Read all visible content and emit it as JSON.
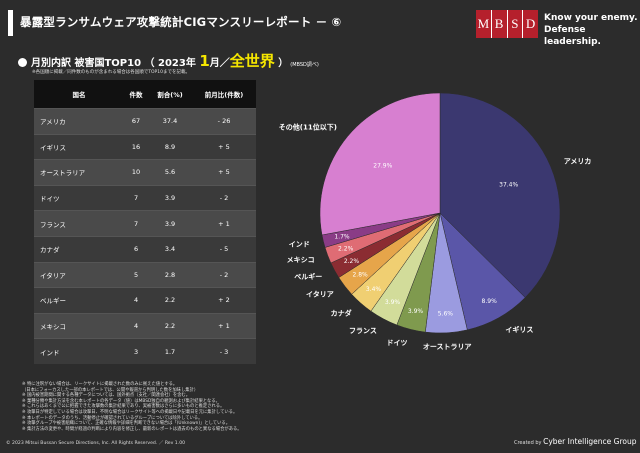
{
  "header": {
    "title": "暴露型ランサムウェア攻撃統計CIGマンスリーレポート － ⑥",
    "logo_letters": [
      "M",
      "B",
      "S",
      "D"
    ],
    "tagline_line1": "Know your enemy.",
    "tagline_line2": "Defense leadership."
  },
  "subtitle": {
    "prefix": "月別内訳 被害国TOP10 （ 2023年",
    "month": "1",
    "middle": "月／",
    "region": "全世界",
    "suffix": "）",
    "source": "(MBSD調べ)"
  },
  "note": "※各国順に掲載／同件数のものが含まれる場合は各国順でTOP10までを記載。",
  "table": {
    "headers": [
      "国名",
      "件数",
      "割合(%)",
      "前月比(件数)"
    ],
    "rows": [
      [
        "アメリカ",
        "67",
        "37.4",
        "- 26"
      ],
      [
        "イギリス",
        "16",
        "8.9",
        "+ 5"
      ],
      [
        "オーストラリア",
        "10",
        "5.6",
        "+ 5"
      ],
      [
        "ドイツ",
        "7",
        "3.9",
        "- 2"
      ],
      [
        "フランス",
        "7",
        "3.9",
        "+ 1"
      ],
      [
        "カナダ",
        "6",
        "3.4",
        "- 5"
      ],
      [
        "イタリア",
        "5",
        "2.8",
        "- 2"
      ],
      [
        "ベルギー",
        "4",
        "2.2",
        "+ 2"
      ],
      [
        "メキシコ",
        "4",
        "2.2",
        "+ 1"
      ],
      [
        "インド",
        "3",
        "1.7",
        "- 3"
      ]
    ]
  },
  "chart_data": {
    "type": "pie",
    "series": [
      {
        "name": "アメリカ",
        "value": 37.4,
        "label": "37.4%",
        "color": "#3b3870"
      },
      {
        "name": "イギリス",
        "value": 8.9,
        "label": "8.9%",
        "color": "#5a56a8"
      },
      {
        "name": "オーストラリア",
        "value": 5.6,
        "label": "5.6%",
        "color": "#9b9be0"
      },
      {
        "name": "ドイツ",
        "value": 3.9,
        "label": "3.9%",
        "color": "#7f9a4e"
      },
      {
        "name": "フランス",
        "value": 3.9,
        "label": "3.9%",
        "color": "#d2dc9a"
      },
      {
        "name": "カナダ",
        "value": 3.4,
        "label": "3.4%",
        "color": "#f0cf72"
      },
      {
        "name": "イタリア",
        "value": 2.8,
        "label": "2.8%",
        "color": "#e6a54a"
      },
      {
        "name": "ベルギー",
        "value": 2.2,
        "label": "2.2%",
        "color": "#8b2c32"
      },
      {
        "name": "メキシコ",
        "value": 2.2,
        "label": "2.2%",
        "color": "#df6c74"
      },
      {
        "name": "インド",
        "value": 1.7,
        "label": "1.7%",
        "color": "#8a3c86"
      },
      {
        "name": "その他(11位以下)",
        "value": 27.9,
        "label": "27.9%",
        "color": "#d77fd0"
      }
    ]
  },
  "footnotes": [
    "※ 特に注釈がない場合は、リークサイトに掲載された数のみに拠えた値とする。",
    "（日本にフォーカスした一部の本レポートでは、公開や報道から判明した数を加味し集計）",
    "※ 国内被害期間に関する各種データについては、国外拠点（支社／関連会社）を含む。",
    "※ 業種分類や集計方法を含む本レポートの各データ（値）はMBSD独自の観測および集計結果となる。",
    "※ これらはあくまで公に把握できた攻撃数の集計結果であり、実被害数はさらに多いものと推定される。",
    "※ 攻撃日が特定している場合は攻撃日、不明な場合はリークサイト等への掲載日や記載日を元に集計している。",
    "※ 本レポートのデータのうち、活動停止が確認されているグループについては除外している。",
    "※ 攻撃グループや被害組織について、正確な情報や詳細を判断できない場合は「(Unknown)」としている。",
    "※ 集計方法の変更や、時間が経過の判断により内容を修正し、最新のレポートは過去のものと異なる場合がある。"
  ],
  "copyright": "© 2023 Mitsui Bussan Secure Directions, Inc.  All Rights Reserved. ／ Rev 1.00",
  "credit": {
    "prefix": "Created by",
    "org": "Cyber Intelligence Group"
  }
}
